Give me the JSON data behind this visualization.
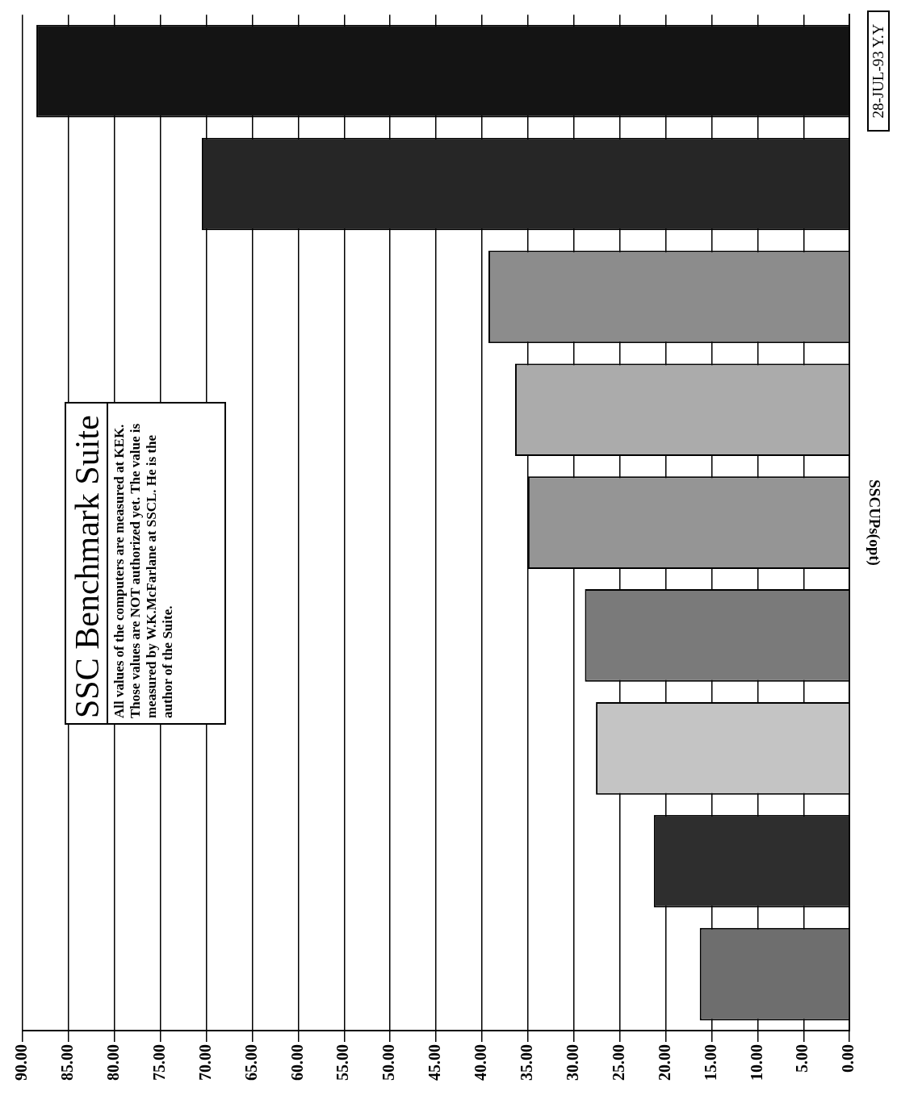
{
  "chart_data": {
    "type": "bar",
    "orientation": "horizontal",
    "title": "SSC Benchmark Suite",
    "ylabel": "SSCUPs(opt)",
    "annotations": [
      "All values of the computers are measured at KEK. Those values are NOT authorized yet. The value is measured by W.K.McFarlane at SSCL. He is the author of the Suite.",
      "28-JUL-93 Y.Y"
    ],
    "categories": [
      null,
      null,
      null,
      null,
      null,
      null,
      null,
      null,
      null
    ],
    "values": [
      88.5,
      70.5,
      39.3,
      36.4,
      35.0,
      28.8,
      27.6,
      21.3,
      16.3
    ],
    "colors": [
      "#141414",
      "#262626",
      "#8c8c8c",
      "#ababab",
      "#959595",
      "#7a7a7a",
      "#c4c4c4",
      "#2e2e2e",
      "#6e6e6e"
    ],
    "xlim": [
      90,
      0
    ],
    "xticks": [
      {
        "value": 90,
        "label": "90.00"
      },
      {
        "value": 85,
        "label": "85.00"
      },
      {
        "value": 80,
        "label": "80.00"
      },
      {
        "value": 75,
        "label": "75.00"
      },
      {
        "value": 70,
        "label": "70.00"
      },
      {
        "value": 65,
        "label": "65.00"
      },
      {
        "value": 60,
        "label": "60.00"
      },
      {
        "value": 55,
        "label": "55.00"
      },
      {
        "value": 50,
        "label": "50.00"
      },
      {
        "value": 45,
        "label": "45.00"
      },
      {
        "value": 40,
        "label": "40.00"
      },
      {
        "value": 35,
        "label": "35.00"
      },
      {
        "value": 30,
        "label": "30.00"
      },
      {
        "value": 25,
        "label": "25.00"
      },
      {
        "value": 20,
        "label": "20.00"
      },
      {
        "value": 15,
        "label": "15.00"
      },
      {
        "value": 10,
        "label": "10.00"
      },
      {
        "value": 5,
        "label": "5.00"
      },
      {
        "value": 0,
        "label": "0.00"
      }
    ],
    "grid": "x",
    "legend": false
  }
}
